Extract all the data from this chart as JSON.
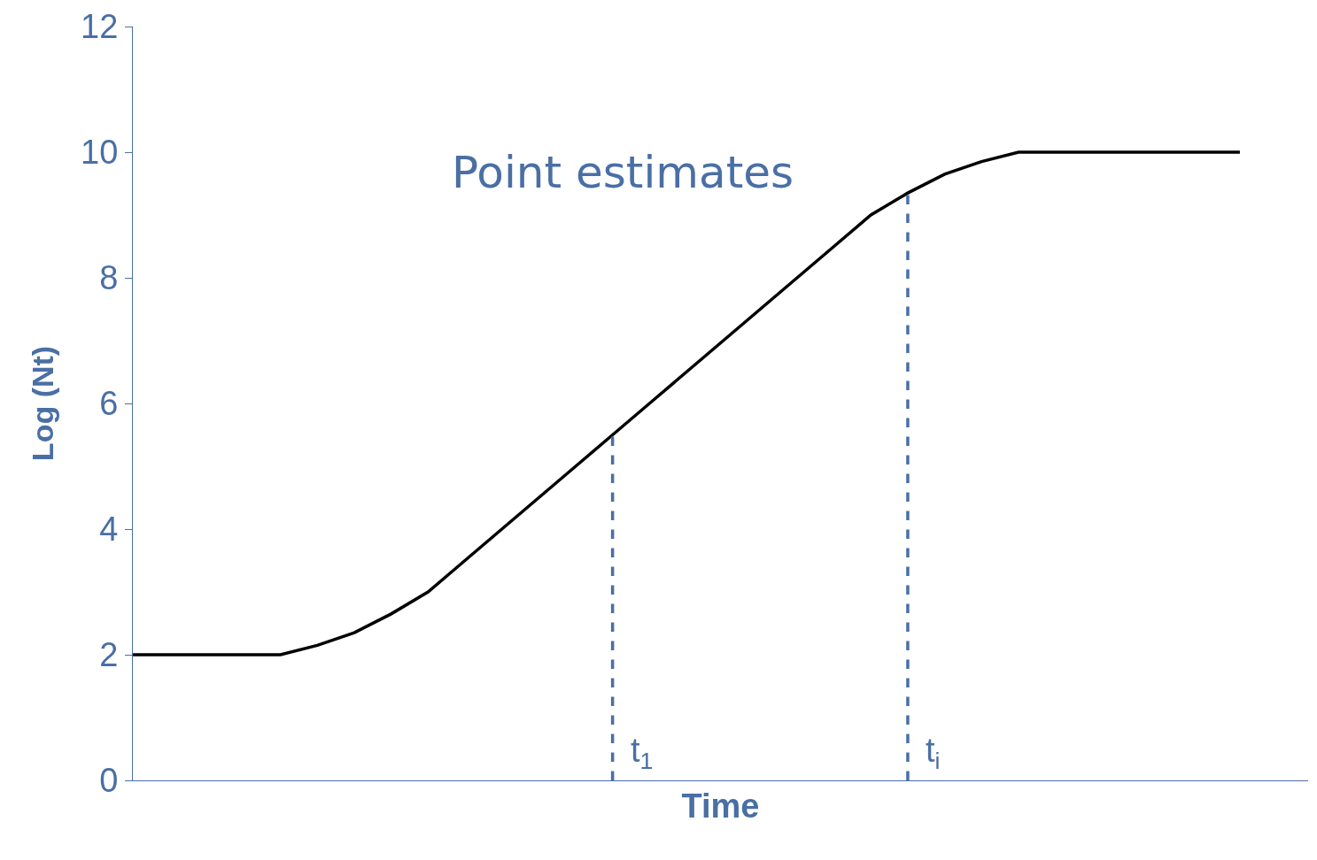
{
  "chart_data": {
    "type": "line",
    "xlabel": "Time",
    "ylabel": "Log (Nt)",
    "categories": [
      null,
      null,
      null,
      null,
      null,
      null,
      null,
      null,
      null,
      null,
      null,
      null,
      null,
      null,
      null,
      null,
      null,
      null,
      null,
      null,
      null,
      null,
      null,
      null,
      null,
      null,
      null,
      null,
      null,
      null,
      null
    ],
    "series": [
      {
        "color": "#000000",
        "values": [
          2,
          2,
          2,
          2,
          2,
          2.15,
          2.35,
          2.65,
          3.0,
          3.5,
          4.0,
          4.5,
          5.0,
          5.5,
          6.0,
          6.5,
          7.0,
          7.5,
          8.0,
          8.5,
          9.0,
          9.35,
          9.65,
          9.85,
          10,
          10,
          10,
          10,
          10,
          10,
          10
        ]
      }
    ],
    "ylim": [
      0,
      12
    ],
    "yticks": [
      0,
      2,
      4,
      6,
      8,
      10,
      12
    ],
    "annotations": [
      "Point estimates",
      "t$_{1}$",
      "t$_{i}$"
    ],
    "marker": "none",
    "line_style": "solid",
    "tick_labels": "y"
  }
}
